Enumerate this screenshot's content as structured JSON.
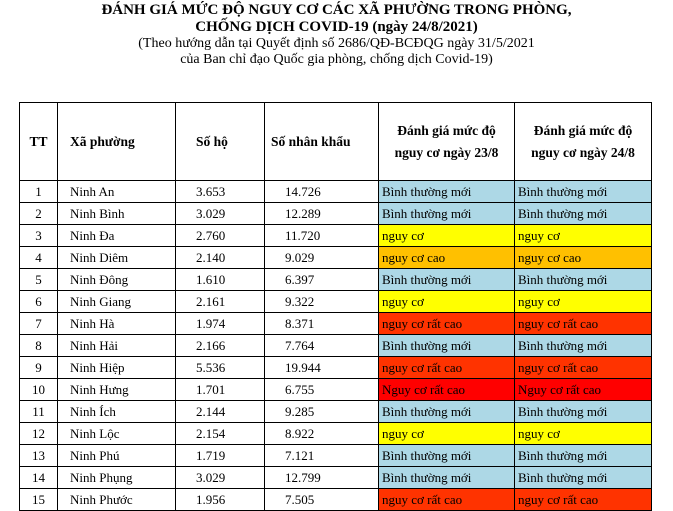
{
  "header": {
    "title_line1": "ĐÁNH GIÁ MỨC ĐỘ NGUY CƠ CÁC XÃ PHƯỜNG TRONG PHÒNG,",
    "title_line2": "CHỐNG DỊCH COVID-19 (ngày 24/8/2021)",
    "subtitle_line1": "(Theo hướng dẫn tại Quyết định số 2686/QĐ-BCĐQG ngày 31/5/2021",
    "subtitle_line2": "của Ban chỉ đạo Quốc gia phòng, chống dịch Covid-19)"
  },
  "table": {
    "columns": {
      "tt": "TT",
      "ward": "Xã phường",
      "households": "Số hộ",
      "population": "Số nhân khẩu",
      "risk_23_8": "Đánh giá mức độ nguy cơ ngày 23/8",
      "risk_24_8": "Đánh giá mức độ nguy cơ ngày 24/8"
    },
    "rows": [
      {
        "tt": "1",
        "ward": "Ninh An",
        "households": "3.653",
        "population": "14.726",
        "risk_23_8": "Bình thường mới",
        "risk_24_8": "Bình thường mới",
        "color_23_8": "#add8e6",
        "color_24_8": "#add8e6"
      },
      {
        "tt": "2",
        "ward": "Ninh Bình",
        "households": "3.029",
        "population": "12.289",
        "risk_23_8": "Bình thường mới",
        "risk_24_8": "Bình thường mới",
        "color_23_8": "#add8e6",
        "color_24_8": "#add8e6"
      },
      {
        "tt": "3",
        "ward": "Ninh Đa",
        "households": "2.760",
        "population": "11.720",
        "risk_23_8": "nguy cơ",
        "risk_24_8": "nguy cơ",
        "color_23_8": "#ffff00",
        "color_24_8": "#ffff00"
      },
      {
        "tt": "4",
        "ward": "Ninh Diêm",
        "households": "2.140",
        "population": "9.029",
        "risk_23_8": "nguy cơ cao",
        "risk_24_8": "nguy cơ cao",
        "color_23_8": "#ffc000",
        "color_24_8": "#ffc000"
      },
      {
        "tt": "5",
        "ward": "Ninh Đông",
        "households": "1.610",
        "population": "6.397",
        "risk_23_8": "Bình thường mới",
        "risk_24_8": "Bình thường mới",
        "color_23_8": "#add8e6",
        "color_24_8": "#add8e6"
      },
      {
        "tt": "6",
        "ward": "Ninh Giang",
        "households": "2.161",
        "population": "9.322",
        "risk_23_8": "nguy cơ",
        "risk_24_8": "nguy cơ",
        "color_23_8": "#ffff00",
        "color_24_8": "#ffff00"
      },
      {
        "tt": "7",
        "ward": "Ninh Hà",
        "households": "1.974",
        "population": "8.371",
        "risk_23_8": "nguy cơ rất cao",
        "risk_24_8": "nguy cơ rất cao",
        "color_23_8": "#ff3300",
        "color_24_8": "#ff3300"
      },
      {
        "tt": "8",
        "ward": "Ninh Hải",
        "households": "2.166",
        "population": "7.764",
        "risk_23_8": "Bình thường mới",
        "risk_24_8": "Bình thường mới",
        "color_23_8": "#add8e6",
        "color_24_8": "#add8e6"
      },
      {
        "tt": "9",
        "ward": "Ninh Hiệp",
        "households": "5.536",
        "population": "19.944",
        "risk_23_8": "nguy cơ rất cao",
        "risk_24_8": "nguy cơ rất cao",
        "color_23_8": "#ff3300",
        "color_24_8": "#ff3300"
      },
      {
        "tt": "10",
        "ward": "Ninh Hưng",
        "households": "1.701",
        "population": "6.755",
        "risk_23_8": "Nguy cơ rất cao",
        "risk_24_8": "Nguy cơ rất cao",
        "color_23_8": "#ff0000",
        "color_24_8": "#ff0000"
      },
      {
        "tt": "11",
        "ward": "Ninh Ích",
        "households": "2.144",
        "population": "9.285",
        "risk_23_8": "Bình thường mới",
        "risk_24_8": "Bình thường mới",
        "color_23_8": "#add8e6",
        "color_24_8": "#add8e6"
      },
      {
        "tt": "12",
        "ward": "Ninh Lộc",
        "households": "2.154",
        "population": "8.922",
        "risk_23_8": "nguy cơ",
        "risk_24_8": "nguy cơ",
        "color_23_8": "#ffff00",
        "color_24_8": "#ffff00"
      },
      {
        "tt": "13",
        "ward": "Ninh Phú",
        "households": "1.719",
        "population": "7.121",
        "risk_23_8": "Bình thường mới",
        "risk_24_8": "Bình thường mới",
        "color_23_8": "#add8e6",
        "color_24_8": "#add8e6"
      },
      {
        "tt": "14",
        "ward": "Ninh Phụng",
        "households": "3.029",
        "population": "12.799",
        "risk_23_8": "Bình thường mới",
        "risk_24_8": "Bình thường mới",
        "color_23_8": "#add8e6",
        "color_24_8": "#add8e6"
      },
      {
        "tt": "15",
        "ward": "Ninh Phước",
        "households": "1.956",
        "population": "7.505",
        "risk_23_8": "nguy cơ rất cao",
        "risk_24_8": "nguy cơ rất cao",
        "color_23_8": "#ff3300",
        "color_24_8": "#ff3300"
      }
    ]
  }
}
